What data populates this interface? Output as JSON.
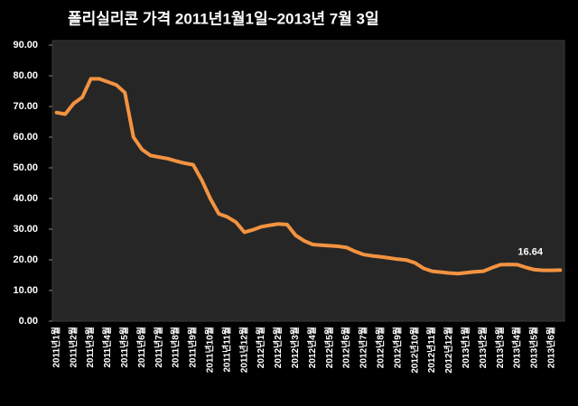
{
  "chart_data": {
    "type": "line",
    "title": "폴리실리콘 가격    2011년1월1일~2013년 7월 3일",
    "categories": [
      "2011년1월",
      null,
      "2011년2월",
      null,
      "2011년3월",
      null,
      "2011년4월",
      null,
      "2011년5월",
      null,
      "2011년6월",
      null,
      "2011년7월",
      null,
      "2011년8월",
      null,
      "2011년9월",
      null,
      "2011년10월",
      null,
      "2011년11월",
      null,
      "2011년12월",
      null,
      "2012년1월",
      null,
      "2012년2월",
      null,
      "2012년3월",
      null,
      "2012년4월",
      null,
      "2012년5월",
      null,
      "2012년6월",
      null,
      "2012년7월",
      null,
      "2012년8월",
      null,
      "2012년9월",
      null,
      "2012년10월",
      null,
      "2012년11월",
      null,
      "2012년12월",
      null,
      "2013년1월",
      null,
      "2013년2월",
      null,
      "2013년3월",
      null,
      "2013년4월",
      null,
      "2013년5월",
      null,
      "2013년6월",
      null
    ],
    "values": [
      68,
      67.5,
      71,
      73,
      79,
      79,
      78,
      77,
      74.5,
      60,
      56,
      54,
      53.5,
      53,
      52.2,
      51.5,
      51,
      46,
      40,
      35,
      34,
      32.3,
      29,
      29.8,
      30.8,
      31.3,
      31.7,
      31.5,
      28,
      26.2,
      25,
      24.8,
      24.6,
      24.4,
      24,
      22.7,
      21.7,
      21.3,
      21,
      20.6,
      20.2,
      19.9,
      19,
      17.2,
      16.3,
      16,
      15.7,
      15.5,
      15.8,
      16.1,
      16.3,
      17.4,
      18.4,
      18.5,
      18.4,
      17.5,
      16.8,
      16.6,
      16.6,
      16.64
    ],
    "color": "#f39341",
    "ylim": [
      0,
      90
    ],
    "yticks": [
      {
        "value": 0,
        "label": "0.00"
      },
      {
        "value": 10,
        "label": "10.00"
      },
      {
        "value": 20,
        "label": "20.00"
      },
      {
        "value": 30,
        "label": "30.00"
      },
      {
        "value": 40,
        "label": "40.00"
      },
      {
        "value": 50,
        "label": "50.00"
      },
      {
        "value": 60,
        "label": "60.00"
      },
      {
        "value": 70,
        "label": "70.00"
      },
      {
        "value": 80,
        "label": "80.00"
      },
      {
        "value": 90,
        "label": "90.00"
      }
    ],
    "grid": false
  }
}
